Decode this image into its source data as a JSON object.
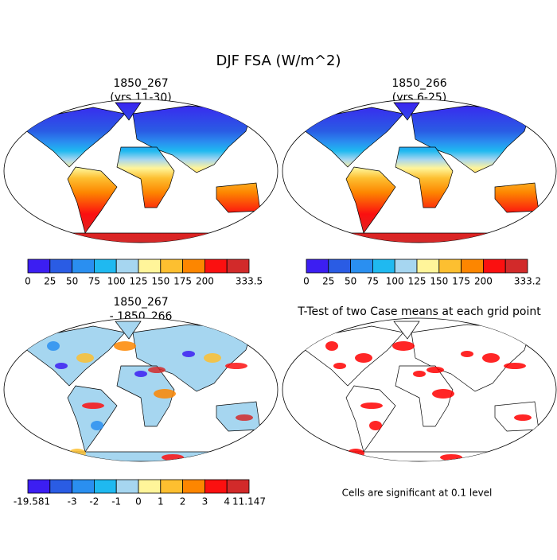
{
  "title": "DJF FSA (W/m^2)",
  "panels": [
    {
      "title": [
        "1850_267",
        "(yrs 11-30)"
      ],
      "colorbar": {
        "labels": [
          "0",
          "25",
          "50",
          "75",
          "100",
          "125",
          "150",
          "175",
          "200",
          "333.5"
        ]
      }
    },
    {
      "title": [
        "1850_266",
        "(yrs 6-25)"
      ],
      "colorbar": {
        "labels": [
          "0",
          "25",
          "50",
          "75",
          "100",
          "125",
          "150",
          "175",
          "200",
          "333.2"
        ]
      }
    },
    {
      "title": [
        "1850_267",
        "- 1850_266"
      ],
      "colorbar": {
        "labels": [
          "-19.581",
          "-3",
          "-2",
          "-1",
          "0",
          "1",
          "2",
          "3",
          "4",
          "11.147"
        ]
      }
    },
    {
      "title": [
        "T-Test of two Case means at each grid point"
      ],
      "note": "Cells are significant at 0.1 level"
    }
  ],
  "colors": [
    "#3c1ef2",
    "#2a5ce4",
    "#2a8ff0",
    "#1fb9f0",
    "#a6d6f0",
    "#fff59a",
    "#fdbf30",
    "#fd8600",
    "#fb1010",
    "#d22a2a"
  ]
}
